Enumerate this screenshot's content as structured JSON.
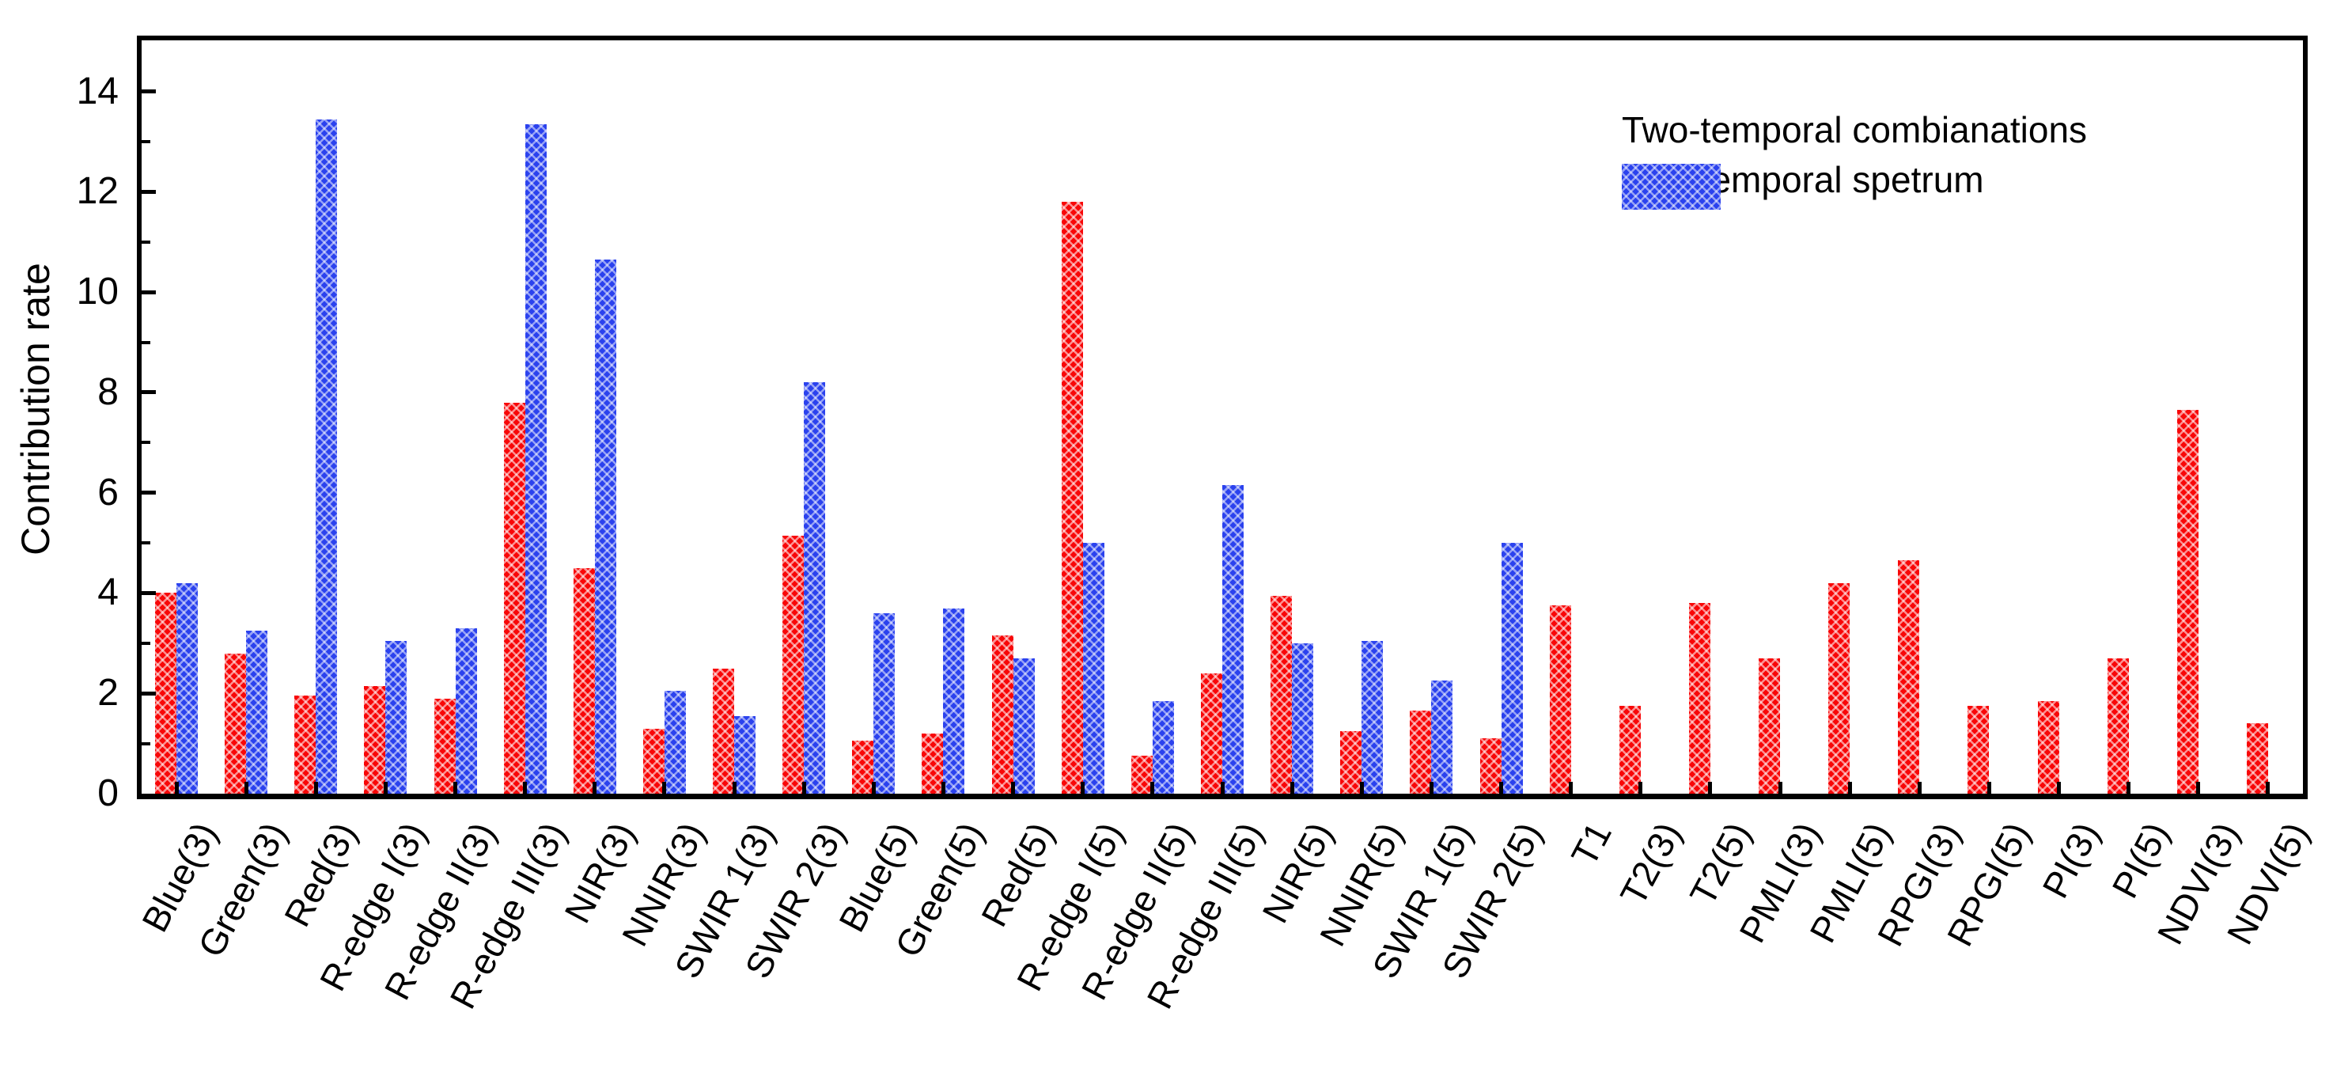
{
  "chart_data": {
    "type": "bar",
    "title": "",
    "xlabel": "",
    "ylabel": "Contribution rate",
    "ylim": [
      0,
      15
    ],
    "yticks": [
      0,
      2,
      4,
      6,
      8,
      10,
      12,
      14
    ],
    "grid": false,
    "legend_position": "top-right-inside",
    "categories": [
      "Blue(3)",
      "Green(3)",
      "Red(3)",
      "R-edge I(3)",
      "R-edge II(3)",
      "R-edge III(3)",
      "NIR(3)",
      "NNIR(3)",
      "SWIR 1(3)",
      "SWIR 2(3)",
      "Blue(5)",
      "Green(5)",
      "Red(5)",
      "R-edge I(5)",
      "R-edge II(5)",
      "R-edge III(5)",
      "NIR(5)",
      "NNIR(5)",
      "SWIR 1(5)",
      "SWIR 2(5)",
      "T1",
      "T2(3)",
      "T2(5)",
      "PMLI(3)",
      "PMLI(5)",
      "RPGI(3)",
      "RPGI(5)",
      "PI(3)",
      "PI(5)",
      "NDVI(3)",
      "NDVI(5)"
    ],
    "series": [
      {
        "name": "Two-temporal combianations",
        "color": "#f80708",
        "values": [
          4.0,
          2.8,
          1.95,
          2.15,
          1.9,
          7.8,
          4.5,
          1.3,
          2.5,
          5.15,
          1.05,
          1.2,
          3.15,
          11.8,
          0.75,
          2.4,
          3.95,
          1.25,
          1.65,
          1.1,
          3.75,
          1.75,
          3.8,
          2.7,
          4.2,
          4.65,
          1.75,
          1.85,
          2.7,
          7.65,
          1.4
        ]
      },
      {
        "name": "Two-temporal spetrum",
        "color": "#2b42ee",
        "values": [
          4.2,
          3.25,
          13.45,
          3.05,
          3.3,
          13.35,
          10.65,
          2.05,
          1.55,
          8.2,
          3.6,
          3.7,
          2.7,
          5.0,
          1.85,
          6.15,
          3.0,
          3.05,
          2.25,
          5.0,
          null,
          null,
          null,
          null,
          null,
          null,
          null,
          null,
          null,
          null,
          null
        ]
      }
    ]
  }
}
